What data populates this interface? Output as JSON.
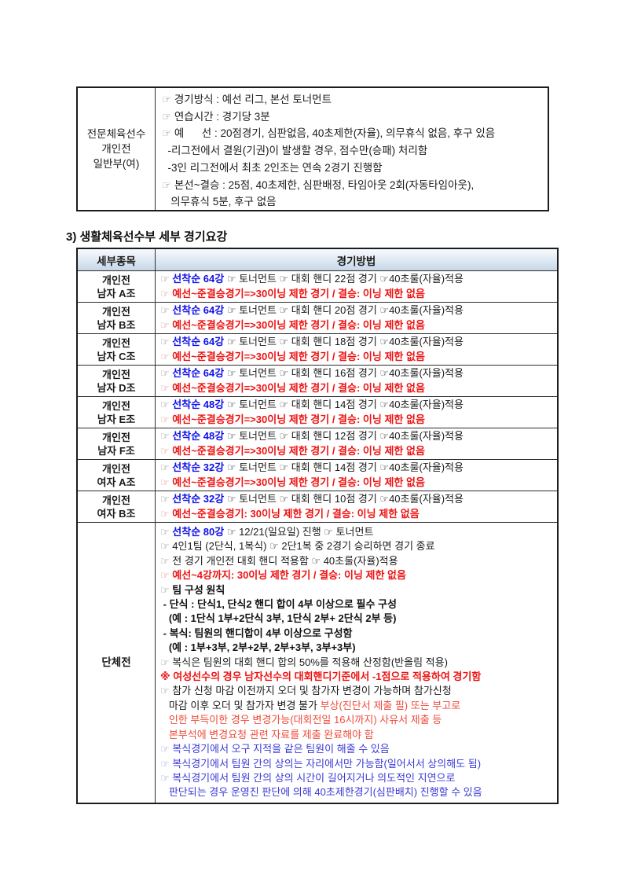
{
  "heading": "3) 생활체육선수부 세부 경기요강",
  "accent_colors": {
    "blue_bold": "#0f0fe8",
    "red_bold": "#ee1212",
    "blue": "#3a3ad6",
    "red": "#ef4b3c",
    "header_bg": "#d6e2f0"
  },
  "table1": {
    "row_label": [
      "전문체육선수",
      "개인전",
      "일반부(여)"
    ],
    "lines": [
      [
        {
          "t": "☞ ",
          "c": "dim"
        },
        {
          "t": "경기방식 : 예선 리그, 본선 토너먼트",
          "c": "k"
        }
      ],
      [
        {
          "t": "☞ ",
          "c": "dim"
        },
        {
          "t": "연습시간 : 경기당 3분",
          "c": "k"
        }
      ],
      [
        {
          "t": "☞ ",
          "c": "dim"
        },
        {
          "t": "예      선 : 20점경기, 심판없음, 40초제한(자율), 의무휴식 없음, 후구 있음",
          "c": "k"
        }
      ],
      [
        {
          "t": "  -리그전에서 결원(기권)이 발생할 경우, 점수만(승패) 처리함",
          "c": "k"
        }
      ],
      [
        {
          "t": "  -3인 리그전에서 최초 2인조는 연속 2경기 진행함",
          "c": "k"
        }
      ],
      [
        {
          "t": "☞ ",
          "c": "dim"
        },
        {
          "t": "본선~결승 : 25점, 40초제한, 심판배정, 타임아웃 2회(자동타임아웃),",
          "c": "k"
        }
      ],
      [
        {
          "t": "   의무휴식 5분, 후구 없음",
          "c": "k"
        }
      ]
    ]
  },
  "table2": {
    "headers": [
      "세부종목",
      "경기방법"
    ],
    "rows": [
      {
        "label": [
          "개인전",
          "남자 A조"
        ],
        "line1": [
          {
            "t": "☞ ",
            "c": "dim"
          },
          {
            "t": "선착순 64강",
            "c": "bb"
          },
          {
            "t": " ☞ 토너먼트 ☞ 대회 핸디 22점 경기 ☞40초룰(자율)적용",
            "c": "k"
          }
        ],
        "line2": [
          {
            "t": "☞ ",
            "c": "dimr"
          },
          {
            "t": "예선~준결승경기=>30이닝 제한 경기 / 결승: 이닝 제한 없음",
            "c": "rb"
          }
        ]
      },
      {
        "label": [
          "개인전",
          "남자 B조"
        ],
        "line1": [
          {
            "t": "☞ ",
            "c": "dim"
          },
          {
            "t": "선착순 64강",
            "c": "bb"
          },
          {
            "t": " ☞ 토너먼트 ☞ 대회 핸디 20점 경기 ☞40초룰(자율)적용",
            "c": "k"
          }
        ],
        "line2": [
          {
            "t": "☞ ",
            "c": "dimr"
          },
          {
            "t": "예선~준결승경기=>30이닝 제한 경기 / 결승: 이닝 제한 없음",
            "c": "rb"
          }
        ]
      },
      {
        "label": [
          "개인전",
          "남자 C조"
        ],
        "line1": [
          {
            "t": "☞ ",
            "c": "dim"
          },
          {
            "t": "선착순 64강",
            "c": "bb"
          },
          {
            "t": " ☞ 토너먼트 ☞ 대회 핸디 18점 경기 ☞40초룰(자율)적용",
            "c": "k"
          }
        ],
        "line2": [
          {
            "t": "☞ ",
            "c": "dimr"
          },
          {
            "t": "예선~준결승경기=>30이닝 제한 경기 / 결승: 이닝 제한 없음",
            "c": "rb"
          }
        ]
      },
      {
        "label": [
          "개인전",
          "남자 D조"
        ],
        "line1": [
          {
            "t": "☞ ",
            "c": "dim"
          },
          {
            "t": "선착순 64강",
            "c": "bb"
          },
          {
            "t": " ☞ 토너먼트 ☞ 대회 핸디 16점 경기 ☞40초룰(자율)적용",
            "c": "k"
          }
        ],
        "line2": [
          {
            "t": "☞ ",
            "c": "dimr"
          },
          {
            "t": "예선~준결승경기=>30이닝 제한 경기 / 결승: 이닝 제한 없음",
            "c": "rb"
          }
        ]
      },
      {
        "label": [
          "개인전",
          "남자 E조"
        ],
        "line1": [
          {
            "t": "☞ ",
            "c": "dim"
          },
          {
            "t": "선착순 48강",
            "c": "bb"
          },
          {
            "t": " ☞ 토너먼트 ☞ 대회 핸디 14점 경기 ☞40초룰(자율)적용",
            "c": "k"
          }
        ],
        "line2": [
          {
            "t": "☞ ",
            "c": "dimr"
          },
          {
            "t": "예선~준결승경기=>30이닝 제한 경기 / 결승: 이닝 제한 없음",
            "c": "rb"
          }
        ]
      },
      {
        "label": [
          "개인전",
          "남자 F조"
        ],
        "line1": [
          {
            "t": "☞ ",
            "c": "dim"
          },
          {
            "t": "선착순 48강",
            "c": "bb"
          },
          {
            "t": " ☞ 토너먼트 ☞ 대회 핸디 12점 경기 ☞40초룰(자율)적용",
            "c": "k"
          }
        ],
        "line2": [
          {
            "t": "☞ ",
            "c": "dimr"
          },
          {
            "t": "예선~준결승경기=>30이닝 제한 경기 / 결승: 이닝 제한 없음",
            "c": "rb"
          }
        ]
      },
      {
        "label": [
          "개인전",
          "여자 A조"
        ],
        "line1": [
          {
            "t": "☞ ",
            "c": "dim"
          },
          {
            "t": "선착순 32강",
            "c": "bb"
          },
          {
            "t": " ☞ 토너먼트 ☞ 대회 핸디 14점 경기 ☞40초룰(자율)적용",
            "c": "k"
          }
        ],
        "line2": [
          {
            "t": "☞ ",
            "c": "dimr"
          },
          {
            "t": "예선~준결승경기=>30이닝 제한 경기 / 결승: 이닝 제한 없음",
            "c": "rb"
          }
        ]
      },
      {
        "label": [
          "개인전",
          "여자 B조"
        ],
        "line1": [
          {
            "t": "☞ ",
            "c": "dim"
          },
          {
            "t": "선착순 32강",
            "c": "bb"
          },
          {
            "t": " ☞ 토너먼트 ☞ 대회 핸디 10점 경기 ☞40초룰(자율)적용",
            "c": "k"
          }
        ],
        "line2": [
          {
            "t": "☞ ",
            "c": "dimr"
          },
          {
            "t": "예선~준결승경기: 30이닝 제한 경기 / 결승: 이닝 제한 없음",
            "c": "rb"
          }
        ]
      }
    ],
    "team_row": {
      "label": "단체전",
      "lines": [
        [
          {
            "t": "☞ ",
            "c": "dim"
          },
          {
            "t": "선착순 80강",
            "c": "bb"
          },
          {
            "t": " ☞ 12/21(일요일) 진행 ☞ 토너먼트",
            "c": "k"
          }
        ],
        [
          {
            "t": "☞ ",
            "c": "dim"
          },
          {
            "t": "4인1팀 (2단식, 1복식) ☞ 2단1복 중 2경기 승리하면 경기 종료",
            "c": "k"
          }
        ],
        [
          {
            "t": "☞ ",
            "c": "dim"
          },
          {
            "t": "전 경기 개인전 대회 핸디 적용함 ☞ 40초룰(자율)적용",
            "c": "k"
          }
        ],
        [
          {
            "t": "☞ ",
            "c": "dimr"
          },
          {
            "t": "예선~4강까지: 30이닝 제한 경기 / 결승: 이닝 제한 없음",
            "c": "rb"
          }
        ],
        [
          {
            "t": "☞ ",
            "c": "dim"
          },
          {
            "t": "팀 구성 원칙",
            "c": "kb"
          }
        ],
        [
          {
            "t": " - 단식 : 단식1, 단식2 핸디 합이 4부 이상으로 필수 구성",
            "c": "kb"
          }
        ],
        [
          {
            "t": "   (예 : 1단식 1부+2단식 3부, 1단식 2부+ 2단식 2부 등)",
            "c": "kb"
          }
        ],
        [
          {
            "t": " - 복식: 팀원의 핸디합이 4부 이상으로 구성함",
            "c": "kb"
          }
        ],
        [
          {
            "t": "   (예 : 1부+3부, 2부+2부, 2부+3부, 3부+3부)",
            "c": "kb"
          }
        ],
        [
          {
            "t": "☞ ",
            "c": "dim"
          },
          {
            "t": "복식은 팀원의 대회 핸디 합의 50%를 적용해 산정함(반올림 적용)",
            "c": "k"
          }
        ],
        [
          {
            "t": "※ 여성선수의 경우 남자선수의 대회핸디기준에서 -1점으로 적용하여 경기함",
            "c": "rb"
          }
        ],
        [
          {
            "t": "☞ ",
            "c": "dim"
          },
          {
            "t": "참가 신청 마감 이전까지 오더 및 참가자 변경이 가능하며 참가신청",
            "c": "k"
          }
        ],
        [
          {
            "t": "   마감 이후 오더 및 참가자 변경 불가 ",
            "c": "k"
          },
          {
            "t": "부상(진단서 제출 필) 또는 부고로",
            "c": "r"
          }
        ],
        [
          {
            "t": "   인한 부득이한 경우 변경가능(대회전일 16시까지) 사유서 제출 등",
            "c": "r"
          }
        ],
        [
          {
            "t": "   본부석에 변경요청 관련 자료를 제출 완료해야 함",
            "c": "r"
          }
        ],
        [
          {
            "t": "☞ ",
            "c": "dimb"
          },
          {
            "t": "복식경기에서 오구 지적을 같은 팀원이 해줄 수 있음",
            "c": "b"
          }
        ],
        [
          {
            "t": "☞ ",
            "c": "dimb"
          },
          {
            "t": "복식경기에서 팀원 간의 상의는 자리에서만 가능함(일어서서 상의해도 됨)",
            "c": "b"
          }
        ],
        [
          {
            "t": "☞ ",
            "c": "dimb"
          },
          {
            "t": "복식경기에서 팀원 간의 상의 시간이 길어지거나 의도적인 지연으로",
            "c": "b"
          }
        ],
        [
          {
            "t": "   판단되는 경우 운영진 판단에 의해 40초제한경기(심판배치) 진행할 수 있음",
            "c": "b"
          }
        ]
      ]
    }
  }
}
